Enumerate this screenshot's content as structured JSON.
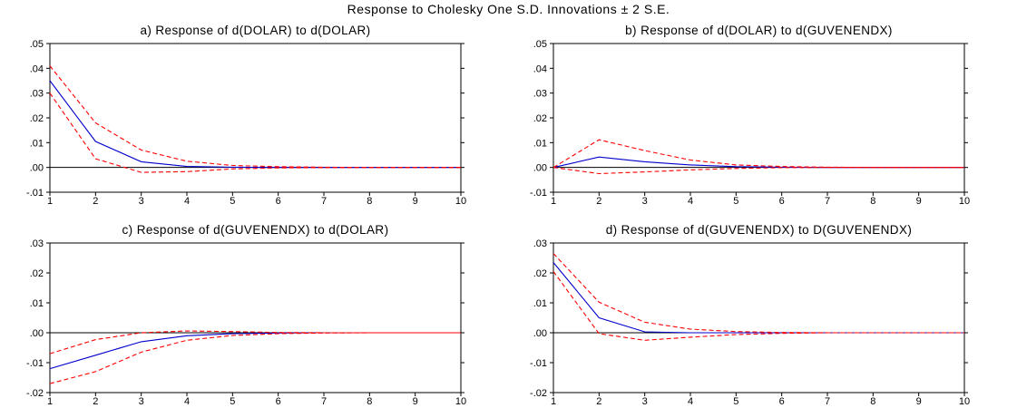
{
  "title": "Response to Cholesky One S.D. Innovations ± 2 S.E.",
  "chart_data": [
    {
      "type": "line",
      "title": "a) Response of d(DOLAR) to d(DOLAR)",
      "x": [
        1,
        2,
        3,
        4,
        5,
        6,
        7,
        8,
        9,
        10
      ],
      "xticks": [
        "1",
        "2",
        "3",
        "4",
        "5",
        "6",
        "7",
        "8",
        "9",
        "10"
      ],
      "ylim": [
        -0.01,
        0.05
      ],
      "yticks": [
        -0.01,
        0.0,
        0.01,
        0.02,
        0.03,
        0.04,
        0.05
      ],
      "ytick_labels": [
        "-.01",
        ".00",
        ".01",
        ".02",
        ".03",
        ".04",
        ".05"
      ],
      "grid": false,
      "zero_line": true,
      "series": [
        {
          "role": "response",
          "color": "#0000cc",
          "values": [
            0.035,
            0.0105,
            0.0023,
            0.0004,
            0.0001,
            0.0,
            0.0,
            0.0,
            0.0,
            0.0
          ]
        },
        {
          "role": "upper",
          "color": "#ff0000",
          "values": [
            0.041,
            0.018,
            0.007,
            0.0025,
            0.0008,
            0.0003,
            0.0001,
            0.0,
            0.0,
            0.0
          ]
        },
        {
          "role": "lower",
          "color": "#ff0000",
          "values": [
            0.03,
            0.0035,
            -0.002,
            -0.0017,
            -0.0006,
            -0.0002,
            -0.0001,
            0.0,
            0.0,
            0.0
          ]
        }
      ]
    },
    {
      "type": "line",
      "title": "b) Response of d(DOLAR) to d(GUVENENDX)",
      "x": [
        1,
        2,
        3,
        4,
        5,
        6,
        7,
        8,
        9,
        10
      ],
      "xticks": [
        "1",
        "2",
        "3",
        "4",
        "5",
        "6",
        "7",
        "8",
        "9",
        "10"
      ],
      "ylim": [
        -0.01,
        0.05
      ],
      "yticks": [
        -0.01,
        0.0,
        0.01,
        0.02,
        0.03,
        0.04,
        0.05
      ],
      "ytick_labels": [
        "-.01",
        ".00",
        ".01",
        ".02",
        ".03",
        ".04",
        ".05"
      ],
      "grid": false,
      "zero_line": true,
      "series": [
        {
          "role": "response",
          "color": "#0000cc",
          "values": [
            0.0,
            0.0042,
            0.0023,
            0.001,
            0.0003,
            0.0001,
            0.0,
            0.0,
            0.0,
            0.0
          ]
        },
        {
          "role": "upper",
          "color": "#ff0000",
          "values": [
            0.0,
            0.0112,
            0.0068,
            0.003,
            0.001,
            0.0004,
            0.0001,
            0.0,
            0.0,
            0.0
          ]
        },
        {
          "role": "lower",
          "color": "#ff0000",
          "values": [
            0.0,
            -0.0025,
            -0.0018,
            -0.001,
            -0.0004,
            -0.0001,
            0.0,
            0.0,
            0.0,
            0.0
          ]
        }
      ]
    },
    {
      "type": "line",
      "title": "c) Response of d(GUVENENDX) to d(DOLAR)",
      "x": [
        1,
        2,
        3,
        4,
        5,
        6,
        7,
        8,
        9,
        10
      ],
      "xticks": [
        "1",
        "2",
        "3",
        "4",
        "5",
        "6",
        "7",
        "8",
        "9",
        "10"
      ],
      "ylim": [
        -0.02,
        0.03
      ],
      "yticks": [
        -0.02,
        -0.01,
        0.0,
        0.01,
        0.02,
        0.03
      ],
      "ytick_labels": [
        "-.02",
        "-.01",
        ".00",
        ".01",
        ".02",
        ".03"
      ],
      "grid": false,
      "zero_line": true,
      "series": [
        {
          "role": "response",
          "color": "#0000cc",
          "values": [
            -0.012,
            -0.0075,
            -0.003,
            -0.001,
            -0.0003,
            -0.0001,
            0.0,
            0.0,
            0.0,
            0.0
          ]
        },
        {
          "role": "upper",
          "color": "#ff0000",
          "values": [
            -0.007,
            -0.0023,
            0.0,
            0.0006,
            0.0004,
            0.0001,
            0.0,
            0.0,
            0.0,
            0.0
          ]
        },
        {
          "role": "lower",
          "color": "#ff0000",
          "values": [
            -0.017,
            -0.013,
            -0.0065,
            -0.0025,
            -0.0009,
            -0.0003,
            -0.0001,
            0.0,
            0.0,
            0.0
          ]
        }
      ]
    },
    {
      "type": "line",
      "title": "d) Response of d(GUVENENDX) to D(GUVENENDX)",
      "x": [
        1,
        2,
        3,
        4,
        5,
        6,
        7,
        8,
        9,
        10
      ],
      "xticks": [
        "1",
        "2",
        "3",
        "4",
        "5",
        "6",
        "7",
        "8",
        "9",
        "10"
      ],
      "ylim": [
        -0.02,
        0.03
      ],
      "yticks": [
        -0.02,
        -0.01,
        0.0,
        0.01,
        0.02,
        0.03
      ],
      "ytick_labels": [
        "-.02",
        "-.01",
        ".00",
        ".01",
        ".02",
        ".03"
      ],
      "grid": false,
      "zero_line": true,
      "series": [
        {
          "role": "response",
          "color": "#0000cc",
          "values": [
            0.0235,
            0.005,
            0.0003,
            0.0,
            0.0,
            0.0,
            0.0,
            0.0,
            0.0,
            0.0
          ]
        },
        {
          "role": "upper",
          "color": "#ff0000",
          "values": [
            0.0265,
            0.0102,
            0.0035,
            0.0012,
            0.0004,
            0.0001,
            0.0,
            0.0,
            0.0,
            0.0
          ]
        },
        {
          "role": "lower",
          "color": "#ff0000",
          "values": [
            0.0205,
            -0.0003,
            -0.0025,
            -0.0015,
            -0.0006,
            -0.0002,
            0.0,
            0.0,
            0.0,
            0.0
          ]
        }
      ]
    }
  ]
}
